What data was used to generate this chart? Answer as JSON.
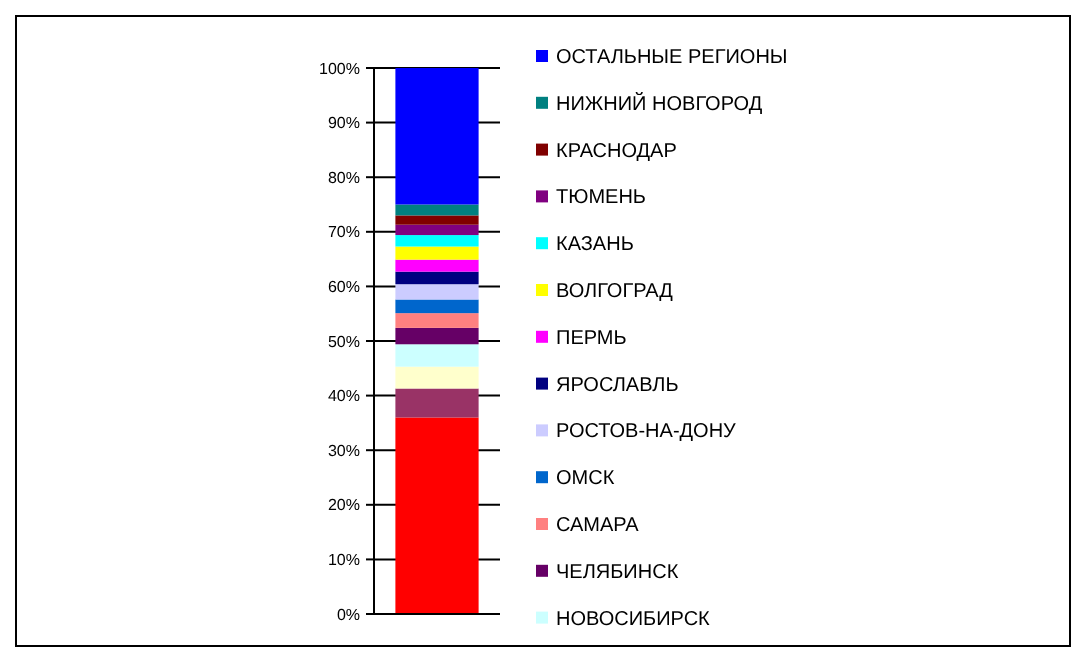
{
  "chart_data": {
    "type": "bar",
    "stacked": true,
    "categories": [
      null
    ],
    "ylim": [
      0,
      100
    ],
    "yticks": [
      {
        "value": 0,
        "label": "0%"
      },
      {
        "value": 10,
        "label": "10%"
      },
      {
        "value": 20,
        "label": "20%"
      },
      {
        "value": 30,
        "label": "30%"
      },
      {
        "value": 40,
        "label": "40%"
      },
      {
        "value": 50,
        "label": "50%"
      },
      {
        "value": 60,
        "label": "60%"
      },
      {
        "value": 70,
        "label": "70%"
      },
      {
        "value": 80,
        "label": "80%"
      },
      {
        "value": 90,
        "label": "90%"
      },
      {
        "value": 100,
        "label": "100%"
      }
    ],
    "grid": "y",
    "legend": "right",
    "series": [
      {
        "color": "#ff0000",
        "values": [
          36.0
        ]
      },
      {
        "color": "#993366",
        "values": [
          5.3
        ]
      },
      {
        "color": "#ffffcc",
        "values": [
          4.0
        ]
      },
      {
        "name": "НОВОСИБИРСК",
        "color": "#ccffff",
        "values": [
          4.1
        ]
      },
      {
        "name": "ЧЕЛЯБИНСК",
        "color": "#660066",
        "values": [
          3.0
        ]
      },
      {
        "name": "САМАРА",
        "color": "#ff8080",
        "values": [
          2.7
        ]
      },
      {
        "name": "ОМСК",
        "color": "#0066cc",
        "values": [
          2.5
        ]
      },
      {
        "name": "РОСТОВ-НА-ДОНУ",
        "color": "#ccccff",
        "values": [
          2.8
        ]
      },
      {
        "name": "ЯРОСЛАВЛЬ",
        "color": "#000080",
        "values": [
          2.3
        ]
      },
      {
        "name": "ПЕРМЬ",
        "color": "#ff00ff",
        "values": [
          2.2
        ]
      },
      {
        "name": "ВОЛГОГРАД",
        "color": "#ffff00",
        "values": [
          2.4
        ]
      },
      {
        "name": "КАЗАНЬ",
        "color": "#00ffff",
        "values": [
          2.1
        ]
      },
      {
        "name": "ТЮМЕНЬ",
        "color": "#800080",
        "values": [
          1.9
        ]
      },
      {
        "name": "КРАСНОДАР",
        "color": "#800000",
        "values": [
          1.7
        ]
      },
      {
        "name": "НИЖНИЙ НОВГОРОД",
        "color": "#008080",
        "values": [
          2.0
        ]
      },
      {
        "name": "ОСТАЛЬНЫЕ РЕГИОНЫ",
        "color": "#0000ff",
        "values": [
          25.0
        ]
      }
    ]
  }
}
